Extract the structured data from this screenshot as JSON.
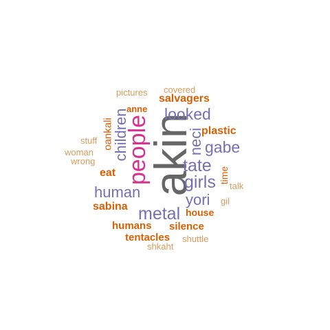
{
  "colors": {
    "gray": "#666666",
    "magenta": "#d6338f",
    "purple": "#7570b3",
    "orange": "#d95f02",
    "light_orange": "#d99a5c"
  },
  "words": {
    "akin": "akin",
    "people": "people",
    "metal": "metal",
    "tate": "tate",
    "girls": "girls",
    "looked": "looked",
    "gabe": "gabe",
    "human": "human",
    "yori": "yori",
    "children": "children",
    "neci": "neci",
    "salvagers": "salvagers",
    "plastic": "plastic",
    "sabina": "sabina",
    "eat": "eat",
    "house": "house",
    "humans": "humans",
    "silence": "silence",
    "tentacles": "tentacles",
    "anne": "anne",
    "oankali": "oankali",
    "time": "time",
    "pictures": "pictures",
    "covered": "covered",
    "stuff": "stuff",
    "woman": "woman",
    "wrong": "wrong",
    "talk": "talk",
    "gil": "gil",
    "shuttle": "shuttle",
    "shkaht": "shkaht"
  }
}
